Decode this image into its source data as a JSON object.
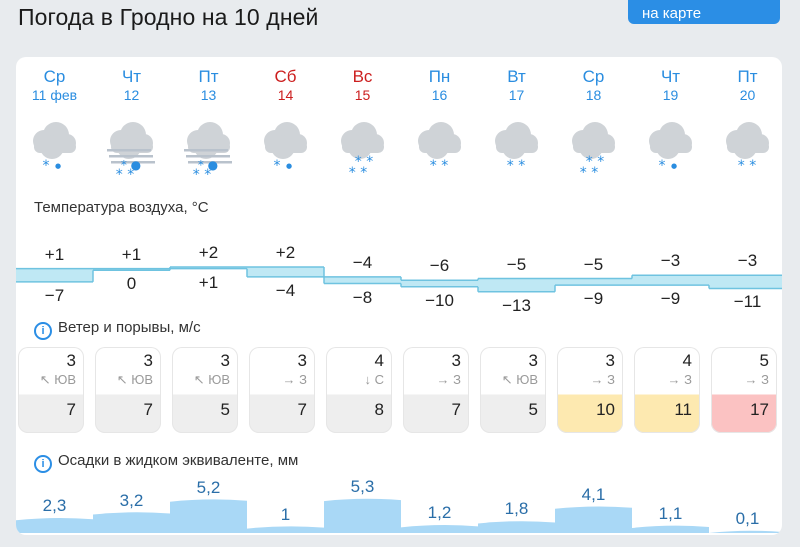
{
  "header": {
    "title": "Погода в Гродно на 10 дней",
    "map_button": "на карте"
  },
  "days": [
    {
      "name": "Ср",
      "date": "11 фев",
      "weekend": false,
      "icon": "cloud-light-snow-icon",
      "tmax": "+1",
      "tmin": "−7",
      "wind": "3",
      "dir": "↖ ЮВ",
      "gust": "7",
      "gust_level": "normal",
      "precip": "2,3",
      "precip_mm": 2.3
    },
    {
      "name": "Чт",
      "date": "12",
      "weekend": false,
      "icon": "cloud-fog-snow-icon",
      "tmax": "+1",
      "tmin": "0",
      "wind": "3",
      "dir": "↖ ЮВ",
      "gust": "7",
      "gust_level": "normal",
      "precip": "3,2",
      "precip_mm": 3.2
    },
    {
      "name": "Пт",
      "date": "13",
      "weekend": false,
      "icon": "cloud-fog-snow-icon",
      "tmax": "+2",
      "tmin": "+1",
      "wind": "3",
      "dir": "↖ ЮВ",
      "gust": "5",
      "gust_level": "normal",
      "precip": "5,2",
      "precip_mm": 5.2
    },
    {
      "name": "Сб",
      "date": "14",
      "weekend": true,
      "icon": "cloud-light-snow-icon",
      "tmax": "+2",
      "tmin": "−4",
      "wind": "3",
      "dir": "→ З",
      "gust": "7",
      "gust_level": "normal",
      "precip": "1",
      "precip_mm": 1.0
    },
    {
      "name": "Вс",
      "date": "15",
      "weekend": true,
      "icon": "cloud-snow-icon",
      "tmax": "−4",
      "tmin": "−8",
      "wind": "4",
      "dir": "↓ С",
      "gust": "8",
      "gust_level": "normal",
      "precip": "5,3",
      "precip_mm": 5.3
    },
    {
      "name": "Пн",
      "date": "16",
      "weekend": false,
      "icon": "cloud-snow-light-icon",
      "tmax": "−6",
      "tmin": "−10",
      "wind": "3",
      "dir": "→ З",
      "gust": "7",
      "gust_level": "normal",
      "precip": "1,2",
      "precip_mm": 1.2
    },
    {
      "name": "Вт",
      "date": "17",
      "weekend": false,
      "icon": "cloud-snow-light-icon",
      "tmax": "−5",
      "tmin": "−13",
      "wind": "3",
      "dir": "↖ ЮВ",
      "gust": "5",
      "gust_level": "normal",
      "precip": "1,8",
      "precip_mm": 1.8
    },
    {
      "name": "Ср",
      "date": "18",
      "weekend": false,
      "icon": "cloud-snow-icon",
      "tmax": "−5",
      "tmin": "−9",
      "wind": "3",
      "dir": "→ З",
      "gust": "10",
      "gust_level": "warn",
      "precip": "4,1",
      "precip_mm": 4.1
    },
    {
      "name": "Чт",
      "date": "19",
      "weekend": false,
      "icon": "cloud-light-snow-icon",
      "tmax": "−3",
      "tmin": "−9",
      "wind": "4",
      "dir": "→ З",
      "gust": "11",
      "gust_level": "warn",
      "precip": "1,1",
      "precip_mm": 1.1
    },
    {
      "name": "Пт",
      "date": "20",
      "weekend": false,
      "icon": "cloud-snow-light-icon",
      "tmax": "−3",
      "tmin": "−11",
      "wind": "5",
      "dir": "→ З",
      "gust": "17",
      "gust_level": "alert",
      "precip": "0,1",
      "precip_mm": 0.1
    }
  ],
  "temperature": {
    "label": "Температура воздуха, °C"
  },
  "wind": {
    "label": "Ветер и порывы, м/с"
  },
  "precipitation": {
    "label": "Осадки в жидком эквиваленте, мм"
  },
  "colors": {
    "accent": "#2a8de0",
    "weekend": "#cc1f1f",
    "temp_band": "#bfe8f4",
    "temp_line": "#6fc3e0",
    "precip_fill": "#a9d8f6",
    "gust_warn": "#fde9b0",
    "gust_alert": "#fbc2c2"
  },
  "info_icon": "i"
}
